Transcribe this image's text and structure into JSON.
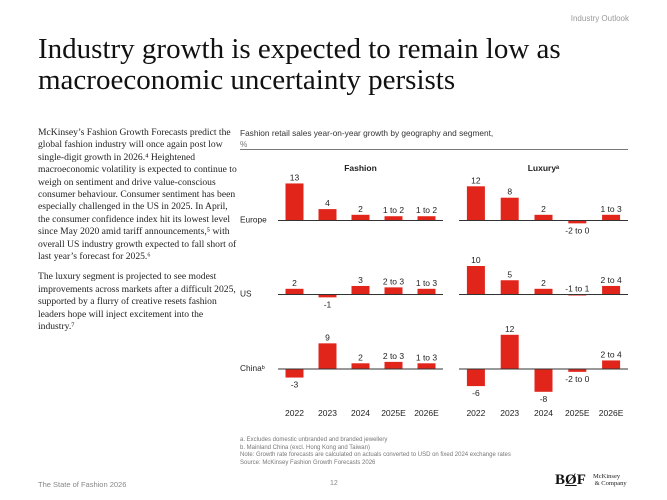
{
  "header": {
    "section": "Industry Outlook",
    "title": "Industry growth is expected to remain low as macroeconomic uncertainty persists"
  },
  "body": {
    "paragraphs": [
      "McKinsey’s Fashion Growth Forecasts predict the global fashion industry will once again post low single-digit growth in 2026.⁴ Heightened macroeconomic volatility is expected to continue to weigh on sentiment and drive value-conscious consumer behaviour. Consumer sentiment has been especially challenged in the US in 2025. In April, the consumer confidence index hit its lowest level since May 2020 amid tariff announcements,⁵ with overall US industry growth expected to fall short of last year’s forecast for 2025.⁶",
      "The luxury segment is projected to see modest improvements across markets after a difficult 2025, supported by a flurry of creative resets fashion leaders hope will inject excitement into the industry.⁷"
    ]
  },
  "chart_data": {
    "type": "bar",
    "title": "Fashion retail sales year-on-year growth by geography and segment,",
    "unit": "%",
    "categories": [
      "2022",
      "2023",
      "2024",
      "2025E",
      "2026E"
    ],
    "bar_color": "#e1251b",
    "panels": [
      {
        "name": "Fashion",
        "rows": [
          {
            "region": "Europe",
            "labels": [
              "13",
              "4",
              "2",
              "1 to 2",
              "1 to 2"
            ],
            "values": [
              [
                13,
                13
              ],
              [
                4,
                4
              ],
              [
                2,
                2
              ],
              [
                1,
                2
              ],
              [
                1,
                2
              ]
            ]
          },
          {
            "region": "US",
            "labels": [
              "2",
              "-1",
              "3",
              "2 to 3",
              "1 to 3"
            ],
            "values": [
              [
                2,
                2
              ],
              [
                -1,
                -1
              ],
              [
                3,
                3
              ],
              [
                2,
                3
              ],
              [
                1,
                3
              ]
            ]
          },
          {
            "region": "Chinaᵇ",
            "labels": [
              "-3",
              "9",
              "2",
              "2 to 3",
              "1 to 3"
            ],
            "values": [
              [
                -3,
                -3
              ],
              [
                9,
                9
              ],
              [
                2,
                2
              ],
              [
                2,
                3
              ],
              [
                1,
                3
              ]
            ]
          }
        ]
      },
      {
        "name": "Luxuryᵃ",
        "rows": [
          {
            "region": "Europe",
            "labels": [
              "12",
              "8",
              "2",
              "-2 to 0",
              "1 to 3"
            ],
            "values": [
              [
                12,
                12
              ],
              [
                8,
                8
              ],
              [
                2,
                2
              ],
              [
                -2,
                0
              ],
              [
                1,
                3
              ]
            ]
          },
          {
            "region": "US",
            "labels": [
              "10",
              "5",
              "2",
              "-1 to 1",
              "2 to 4"
            ],
            "values": [
              [
                10,
                10
              ],
              [
                5,
                5
              ],
              [
                2,
                2
              ],
              [
                -1,
                1
              ],
              [
                2,
                4
              ]
            ]
          },
          {
            "region": "Chinaᵇ",
            "labels": [
              "-6",
              "12",
              "-8",
              "-2 to 0",
              "2 to 4"
            ],
            "values": [
              [
                -6,
                -6
              ],
              [
                12,
                12
              ],
              [
                -8,
                -8
              ],
              [
                -2,
                0
              ],
              [
                2,
                4
              ]
            ]
          }
        ]
      }
    ]
  },
  "notes": [
    "a. Excludes domestic unbranded and branded jewellery",
    "b. Mainland China (excl. Hong Kong and Taiwan)",
    "Note: Growth rate forecasts are calculated on actuals converted to USD on fixed 2024 exchange rates",
    "Source: McKinsey Fashion Growth Forecasts 2026"
  ],
  "footer": {
    "publication": "The State of Fashion 2026",
    "page": "12",
    "logo_bof": "BoF",
    "logo_mckinsey": "McKinsey & Company"
  }
}
